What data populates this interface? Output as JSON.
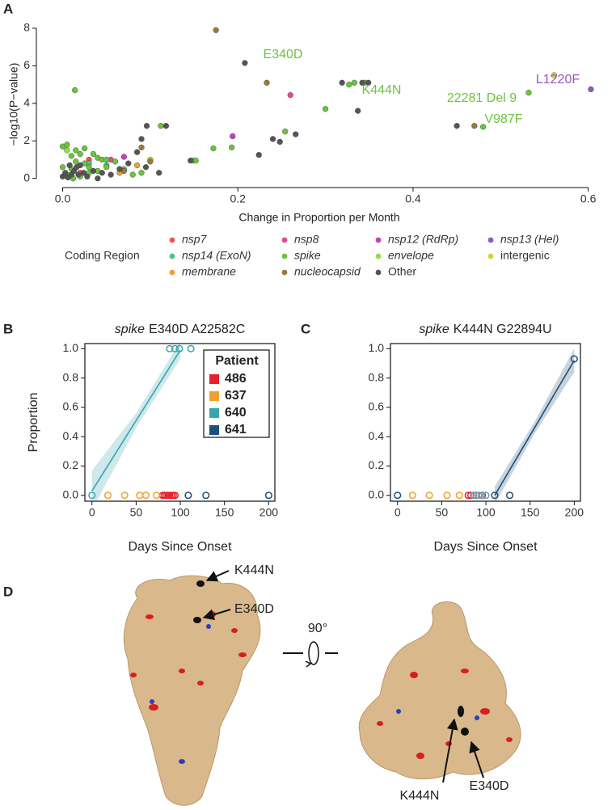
{
  "chart_data": [
    {
      "type": "scatter",
      "panel_label": "A",
      "marker": "filled",
      "x_label": "Change in Proportion per Month",
      "y_label": "−log10(P−value)",
      "xlim": [
        -0.03,
        0.616
      ],
      "ylim": [
        -0.4,
        8.3
      ],
      "xticks": [
        {
          "value": 0,
          "label": "0.0"
        },
        0.2,
        0.4,
        0.6
      ],
      "yticks": [
        0,
        2,
        4,
        6,
        8
      ],
      "legend": "bottom",
      "legend_title": "Coding Region",
      "series": [
        {
          "name": "nsp7",
          "italic": true,
          "color": "#f0564a",
          "x": [
            0.02,
            0.03
          ],
          "values": [
            0.3,
            1.0
          ]
        },
        {
          "name": "nsp8",
          "italic": true,
          "color": "#e8489a",
          "x": [
            0.26,
            0.055
          ],
          "values": [
            4.44,
            1.0
          ]
        },
        {
          "name": "nsp12 (RdRp)",
          "italic": true,
          "color": "#c63fbf",
          "x": [
            0.194,
            0.07
          ],
          "values": [
            2.25,
            1.15
          ]
        },
        {
          "name": "nsp13 (Hel)",
          "italic": true,
          "color": "#9458c0",
          "x": [
            0.603
          ],
          "values": [
            4.75
          ]
        },
        {
          "name": "nsp14 (ExoN)",
          "italic": true,
          "color": "#4cc48c",
          "x": [
            0.03,
            0.05
          ],
          "values": [
            0.8,
            0.7
          ]
        },
        {
          "name": "spike",
          "italic": true,
          "color": "#6cc43c",
          "x": [
            0.014,
            0.254,
            0.3,
            0.327,
            0.333,
            0.345,
            0.532,
            0.48,
            0.112,
            0.172,
            0.193,
            0.149,
            0.152,
            0.0,
            0.005,
            0.01,
            0.015,
            0.02,
            0.025,
            0.03,
            0.035,
            0.04,
            0.045,
            0.05,
            0.06,
            0.07,
            0.08,
            0.09,
            0.005,
            0.01,
            0.02,
            0.03,
            0.04,
            0.05,
            0.015,
            0.025,
            0.012,
            0.0
          ],
          "values": [
            4.7,
            2.5,
            3.7,
            5.0,
            5.1,
            5.1,
            4.57,
            2.75,
            2.8,
            1.6,
            1.65,
            0.95,
            0.95,
            1.7,
            1.8,
            1.2,
            1.5,
            1.3,
            0.8,
            0.6,
            1.3,
            1.1,
            1.0,
            1.0,
            0.9,
            0.5,
            0.2,
            0.3,
            0.2,
            0.5,
            0.1,
            0.3,
            0.4,
            0.6,
            0.9,
            1.6,
            0.0,
            0.6
          ]
        },
        {
          "name": "envelope",
          "italic": true,
          "color": "#8ee04a",
          "x": [
            0.005
          ],
          "values": [
            1.5
          ]
        },
        {
          "name": "intergenic",
          "italic": false,
          "color": "#d4d43a",
          "x": [
            0.561,
            0.1
          ],
          "values": [
            5.5,
            1.0
          ]
        },
        {
          "name": "membrane",
          "italic": true,
          "color": "#f0a030",
          "x": [
            0.065,
            0.085
          ],
          "values": [
            0.3,
            0.7
          ]
        },
        {
          "name": "nucleocapsid",
          "italic": true,
          "color": "#9a7a3a",
          "x": [
            0.175,
            0.233,
            0.47,
            0.09,
            0.07,
            0.1
          ],
          "values": [
            7.9,
            5.1,
            2.8,
            1.65,
            0.4,
            0.9
          ]
        },
        {
          "name": "Other",
          "italic": false,
          "color": "#555555",
          "x": [
            0.208,
            0.319,
            0.342,
            0.349,
            0.337,
            0.45,
            0.118,
            0.096,
            0.09,
            0.266,
            0.248,
            0.24,
            0.224,
            0.146,
            0.0,
            0.003,
            0.006,
            0.01,
            0.013,
            0.016,
            0.02,
            0.024,
            0.028,
            0.035,
            0.045,
            0.055,
            0.065,
            0.075,
            0.085,
            0.11,
            0.095,
            0.008,
            0.018,
            0.04
          ],
          "values": [
            6.15,
            5.1,
            5.1,
            5.1,
            3.6,
            2.8,
            2.8,
            2.8,
            2.1,
            2.35,
            1.95,
            2.1,
            1.25,
            0.95,
            0.1,
            0.3,
            0.05,
            0.2,
            0.4,
            0.6,
            0.7,
            0.3,
            0.1,
            0.4,
            0.3,
            0.2,
            0.5,
            0.8,
            1.4,
            0.3,
            0.6,
            0.7,
            0.2,
            0.0
          ]
        }
      ],
      "annotations": [
        {
          "text": "E340D",
          "color": "#6cc43c"
        },
        {
          "text": "K444N",
          "color": "#6cc43c"
        },
        {
          "text": "22281 Del 9",
          "color": "#6cc43c"
        },
        {
          "text": "V987F",
          "color": "#6cc43c"
        },
        {
          "text": "L1220F",
          "color": "#9458c0"
        }
      ]
    },
    {
      "type": "scatter",
      "panel_label": "B",
      "marker": "open",
      "frame": true,
      "title_gene": "spike",
      "title": "E340D A22582C",
      "x_label": "Days Since Onset",
      "y_label": "Proportion",
      "xlim": [
        -8,
        207
      ],
      "ylim": [
        -0.04,
        1.035
      ],
      "xticks": [
        0,
        50,
        100,
        150,
        200
      ],
      "yticks": [
        {
          "value": 0,
          "label": "0.0"
        },
        0.2,
        0.4,
        0.6,
        0.8,
        {
          "value": 1,
          "label": "1.0"
        }
      ],
      "legend": "top-right",
      "legend_title": "Patient",
      "series": [
        {
          "name": "486",
          "color": "#e8202a",
          "x": [
            80,
            82,
            84,
            86,
            88,
            90,
            92,
            94
          ],
          "values": [
            0,
            0,
            0,
            0,
            0,
            0,
            0,
            0
          ]
        },
        {
          "name": "637",
          "color": "#f0a030",
          "x": [
            18,
            37,
            54,
            61,
            73
          ],
          "values": [
            0,
            0,
            0,
            0,
            0
          ]
        },
        {
          "name": "640",
          "color": "#3aa5b0",
          "x": [
            0,
            88,
            94,
            99,
            112
          ],
          "values": [
            0,
            1,
            1,
            1,
            1
          ],
          "fit": {
            "x": [
              0,
              50,
              100
            ],
            "y": [
              0.03,
              0.51,
              0.99
            ],
            "lower": [
              -0.1,
              0.46,
              0.93
            ],
            "upper": [
              0.17,
              0.56,
              1.05
            ]
          }
        },
        {
          "name": "641",
          "color": "#1f4e79",
          "x": [
            109,
            129,
            200
          ],
          "values": [
            0,
            0,
            0
          ]
        }
      ]
    },
    {
      "type": "scatter",
      "panel_label": "C",
      "marker": "open",
      "frame": true,
      "title_gene": "spike",
      "title": "K444N G22894U",
      "x_label": "Days Since Onset",
      "xlim": [
        -8,
        207
      ],
      "ylim": [
        -0.04,
        1.035
      ],
      "xticks": [
        0,
        50,
        100,
        150,
        200
      ],
      "yticks": [
        {
          "value": 0,
          "label": "0.0"
        },
        0.2,
        0.4,
        0.6,
        0.8,
        {
          "value": 1,
          "label": "1.0"
        }
      ],
      "legend": false,
      "series": [
        {
          "name": "486",
          "color": "#e8202a",
          "x": [
            80,
            83,
            86,
            89,
            92,
            96
          ],
          "values": [
            0,
            0,
            0,
            0,
            0,
            0
          ]
        },
        {
          "name": "637",
          "color": "#f0a030",
          "x": [
            17,
            36,
            56,
            70
          ],
          "values": [
            0,
            0,
            0,
            0
          ]
        },
        {
          "name": "640",
          "color": "#7a9aa5",
          "x": [
            86,
            89,
            92,
            95,
            100
          ],
          "values": [
            0,
            0,
            0,
            0,
            0
          ]
        },
        {
          "name": "641",
          "color": "#1f4e79",
          "x": [
            0,
            110,
            127,
            200
          ],
          "values": [
            0,
            0,
            0,
            0.93
          ],
          "fit": {
            "x": [
              110,
              155,
              200
            ],
            "y": [
              0.0,
              0.46,
              0.92
            ],
            "lower": [
              -0.06,
              0.42,
              0.84
            ],
            "upper": [
              0.06,
              0.5,
              1.0
            ]
          }
        }
      ]
    }
  ],
  "panel_d": {
    "panel_label": "D",
    "left_labels": [
      "K444N",
      "E340D"
    ],
    "rotation": "90°",
    "right_labels": [
      "K444N",
      "E340D"
    ]
  }
}
